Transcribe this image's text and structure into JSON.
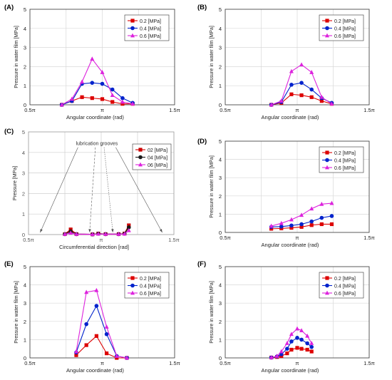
{
  "panels": [
    {
      "label": "(A)",
      "chart_data": {
        "type": "line",
        "x_ticks": [
          "0.5π",
          "π",
          "1.5π"
        ],
        "y_ticks": [
          "0",
          "1",
          "2",
          "3",
          "4",
          "5"
        ],
        "xlabel": "Angular coordinate (rad)",
        "ylabel": "Pressure in water film [MPa]",
        "ylim": [
          0,
          5
        ],
        "xlim": [
          0.5,
          1.5
        ],
        "x_units": "multiples of π",
        "grid": true,
        "legend": "top-right",
        "x": [
          0.72,
          0.79,
          0.86,
          0.93,
          1.0,
          1.07,
          1.14,
          1.21
        ],
        "series": [
          {
            "name": "0.2 [MPa]",
            "color": "#dd0000",
            "marker": "square",
            "values": [
              0.0,
              0.2,
              0.4,
              0.35,
              0.3,
              0.15,
              0.05,
              0.05
            ]
          },
          {
            "name": "0.4 [MPa]",
            "color": "#0022cc",
            "marker": "circle",
            "values": [
              0.0,
              0.2,
              1.1,
              1.15,
              1.1,
              0.8,
              0.35,
              0.1
            ]
          },
          {
            "name": "0.6 [MPa]",
            "color": "#dd22dd",
            "marker": "triangle",
            "values": [
              0.0,
              0.3,
              1.2,
              2.4,
              1.7,
              0.5,
              0.15,
              0.05
            ]
          }
        ]
      }
    },
    {
      "label": "(B)",
      "chart_data": {
        "type": "line",
        "x_ticks": [
          "0.5π",
          "π",
          "1.5π"
        ],
        "y_ticks": [
          "0",
          "1",
          "2",
          "3",
          "4",
          "5"
        ],
        "xlabel": "Angular coordinate (rad)",
        "ylabel": "Pressure in water film [MPa]",
        "ylim": [
          0,
          5
        ],
        "xlim": [
          0.5,
          1.5
        ],
        "x_units": "multiples of π",
        "grid": true,
        "legend": "top-right",
        "x": [
          0.82,
          0.89,
          0.96,
          1.03,
          1.1,
          1.17,
          1.24
        ],
        "series": [
          {
            "name": "0.2 [MPa]",
            "color": "#dd0000",
            "marker": "square",
            "values": [
              0.0,
              0.1,
              0.55,
              0.5,
              0.4,
              0.2,
              0.05
            ]
          },
          {
            "name": "0.4 [MPa]",
            "color": "#0022cc",
            "marker": "circle",
            "values": [
              0.0,
              0.15,
              1.05,
              1.15,
              0.8,
              0.35,
              0.1
            ]
          },
          {
            "name": "0.6 [MPa]",
            "color": "#dd22dd",
            "marker": "triangle",
            "values": [
              0.0,
              0.2,
              1.75,
              2.1,
              1.7,
              0.4,
              0.05
            ]
          }
        ]
      }
    },
    {
      "label": "(C)",
      "chart_data": {
        "type": "line",
        "x_ticks": [
          "0.5π",
          "π",
          "1.5π"
        ],
        "y_ticks": [
          "0",
          "1",
          "2",
          "3",
          "4",
          "5"
        ],
        "xlabel": "Circumferential direction [rad]",
        "ylabel": "Pressure [MPa]",
        "ylim": [
          0,
          5
        ],
        "xlim": [
          0.5,
          1.5
        ],
        "x_units": "multiples of π",
        "grid": true,
        "legend": "top-right",
        "annotation": "lubrication grooves",
        "x": [
          0.75,
          0.79,
          0.83,
          0.94,
          0.98,
          1.03,
          1.12,
          1.16,
          1.19
        ],
        "series": [
          {
            "name": "02 [MPa]",
            "color": "#cc0000",
            "marker": "square",
            "values": [
              0.02,
              0.25,
              0.02,
              0.01,
              0.05,
              0.02,
              0.02,
              0.05,
              0.45
            ]
          },
          {
            "name": "04 [MPa]",
            "color": "#1a1a1a",
            "marker": "circle",
            "values": [
              0.02,
              0.15,
              0.02,
              0.01,
              0.04,
              0.02,
              0.02,
              0.04,
              0.35
            ]
          },
          {
            "name": "06 [MPa]",
            "color": "#dd22dd",
            "marker": "triangle",
            "values": [
              0.02,
              0.08,
              0.02,
              0.01,
              0.03,
              0.02,
              0.02,
              0.03,
              0.2
            ]
          }
        ]
      }
    },
    {
      "label": "(D)",
      "chart_data": {
        "type": "line",
        "x_ticks": [
          "0.5π",
          "π",
          "1.5π"
        ],
        "y_ticks": [
          "0",
          "1",
          "2",
          "3",
          "4",
          "5"
        ],
        "xlabel": "Angular coordinate (rad)",
        "ylabel": "Pressure in water film [MPa]",
        "ylim": [
          0,
          5
        ],
        "xlim": [
          0.5,
          1.5
        ],
        "x_units": "multiples of π",
        "grid": true,
        "legend": "top-right",
        "x": [
          0.82,
          0.89,
          0.96,
          1.03,
          1.1,
          1.17,
          1.24
        ],
        "series": [
          {
            "name": "0.2 [MPa]",
            "color": "#dd0000",
            "marker": "square",
            "values": [
              0.2,
              0.22,
              0.25,
              0.3,
              0.4,
              0.45,
              0.45
            ]
          },
          {
            "name": "0.4 [MPa]",
            "color": "#0022cc",
            "marker": "circle",
            "values": [
              0.3,
              0.32,
              0.38,
              0.45,
              0.6,
              0.8,
              0.9
            ]
          },
          {
            "name": "0.6 [MPa]",
            "color": "#dd22dd",
            "marker": "triangle",
            "values": [
              0.35,
              0.5,
              0.7,
              0.95,
              1.3,
              1.55,
              1.6
            ]
          }
        ]
      }
    },
    {
      "label": "(E)",
      "chart_data": {
        "type": "line",
        "x_ticks": [
          "0.5π",
          "π",
          "1.5π"
        ],
        "y_ticks": [
          "0",
          "1",
          "2",
          "3",
          "4",
          "5"
        ],
        "xlabel": "Angular coordinate (rad)",
        "ylabel": "Pressure in water film [MPa]",
        "ylim": [
          0,
          5
        ],
        "xlim": [
          0.5,
          1.5
        ],
        "x_units": "multiples of π",
        "grid": true,
        "legend": "top-right",
        "x": [
          0.82,
          0.89,
          0.96,
          1.03,
          1.1,
          1.17
        ],
        "series": [
          {
            "name": "0.2 [MPa]",
            "color": "#dd0000",
            "marker": "square",
            "values": [
              0.15,
              0.7,
              1.2,
              0.25,
              0.0,
              0.0
            ]
          },
          {
            "name": "0.4 [MPa]",
            "color": "#0022cc",
            "marker": "circle",
            "values": [
              0.3,
              1.85,
              2.85,
              1.3,
              0.1,
              0.0
            ]
          },
          {
            "name": "0.6 [MPa]",
            "color": "#dd22dd",
            "marker": "triangle",
            "values": [
              0.35,
              3.6,
              3.7,
              1.7,
              0.1,
              0.0
            ]
          }
        ]
      }
    },
    {
      "label": "(F)",
      "chart_data": {
        "type": "line",
        "x_ticks": [
          "0.5π",
          "π",
          "1.5π"
        ],
        "y_ticks": [
          "0",
          "1",
          "2",
          "3",
          "4",
          "5"
        ],
        "xlabel": "Angular coordinate (rad)",
        "ylabel": "Pressure in water film [MPa]",
        "ylim": [
          0,
          5
        ],
        "xlim": [
          0.5,
          1.5
        ],
        "x_units": "multiples of π",
        "grid": true,
        "legend": "top-right",
        "x": [
          0.82,
          0.86,
          0.89,
          0.93,
          0.96,
          1.0,
          1.03,
          1.07,
          1.1
        ],
        "series": [
          {
            "name": "0.2 [MPa]",
            "color": "#dd0000",
            "marker": "square",
            "values": [
              0.02,
              0.05,
              0.1,
              0.25,
              0.45,
              0.55,
              0.5,
              0.45,
              0.35
            ]
          },
          {
            "name": "0.4 [MPa]",
            "color": "#0022cc",
            "marker": "circle",
            "values": [
              0.02,
              0.08,
              0.2,
              0.5,
              0.9,
              1.1,
              1.0,
              0.8,
              0.6
            ]
          },
          {
            "name": "0.6 [MPa]",
            "color": "#dd22dd",
            "marker": "triangle",
            "values": [
              0.02,
              0.1,
              0.35,
              0.8,
              1.3,
              1.6,
              1.5,
              1.2,
              0.8
            ]
          }
        ]
      }
    }
  ]
}
